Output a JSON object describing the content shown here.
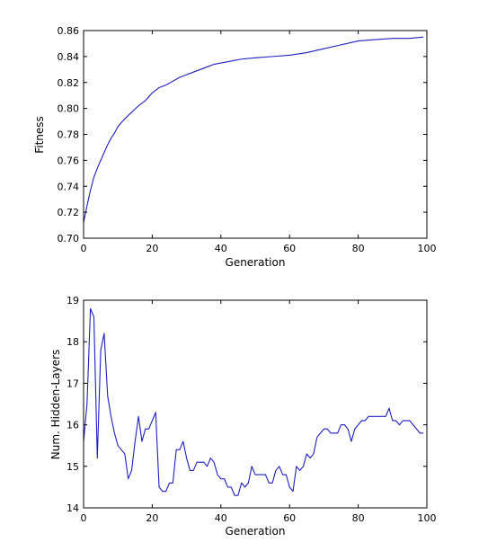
{
  "chart_data": [
    {
      "type": "line",
      "xlabel": "Generation",
      "ylabel": "Fitness",
      "xlim": [
        0,
        100
      ],
      "ylim": [
        0.7,
        0.86
      ],
      "xticks": [
        0,
        20,
        40,
        60,
        80,
        100
      ],
      "xtick_labels": [
        "0",
        "20",
        "40",
        "60",
        "80",
        "100"
      ],
      "yticks": [
        0.7,
        0.72,
        0.74,
        0.76,
        0.78,
        0.8,
        0.82,
        0.84,
        0.86
      ],
      "ytick_labels": [
        "0.70",
        "0.72",
        "0.74",
        "0.76",
        "0.78",
        "0.80",
        "0.82",
        "0.84",
        "0.86"
      ],
      "grid": false,
      "color": "#1f1fbf",
      "series": [
        {
          "x": [
            0,
            1,
            2,
            3,
            4,
            5,
            6,
            7,
            8,
            9,
            10,
            12,
            14,
            16,
            18,
            20,
            22,
            24,
            26,
            28,
            30,
            32,
            34,
            36,
            38,
            40,
            42,
            44,
            46,
            50,
            55,
            60,
            65,
            70,
            75,
            80,
            85,
            90,
            95,
            99
          ],
          "y": [
            0.712,
            0.725,
            0.737,
            0.747,
            0.754,
            0.76,
            0.766,
            0.772,
            0.777,
            0.781,
            0.786,
            0.792,
            0.797,
            0.802,
            0.806,
            0.812,
            0.816,
            0.818,
            0.821,
            0.824,
            0.826,
            0.828,
            0.83,
            0.832,
            0.834,
            0.835,
            0.836,
            0.837,
            0.838,
            0.839,
            0.84,
            0.841,
            0.843,
            0.846,
            0.849,
            0.852,
            0.853,
            0.854,
            0.854,
            0.855
          ]
        }
      ]
    },
    {
      "type": "line",
      "xlabel": "Generation",
      "ylabel": "Num. Hidden-Layers",
      "xlim": [
        0,
        100
      ],
      "ylim": [
        14,
        19
      ],
      "xticks": [
        0,
        20,
        40,
        60,
        80,
        100
      ],
      "xtick_labels": [
        "0",
        "20",
        "40",
        "60",
        "80",
        "100"
      ],
      "yticks": [
        14,
        15,
        16,
        17,
        18,
        19
      ],
      "ytick_labels": [
        "14",
        "15",
        "16",
        "17",
        "18",
        "19"
      ],
      "grid": false,
      "color": "#1f1fbf",
      "series": [
        {
          "x": [
            0,
            1,
            2,
            3,
            4,
            5,
            6,
            7,
            8,
            9,
            10,
            11,
            12,
            13,
            14,
            15,
            16,
            17,
            18,
            19,
            20,
            21,
            22,
            23,
            24,
            25,
            26,
            27,
            28,
            29,
            30,
            31,
            32,
            33,
            34,
            35,
            36,
            37,
            38,
            39,
            40,
            41,
            42,
            43,
            44,
            45,
            46,
            47,
            48,
            49,
            50,
            51,
            52,
            53,
            54,
            55,
            56,
            57,
            58,
            59,
            60,
            61,
            62,
            63,
            64,
            65,
            66,
            67,
            68,
            69,
            70,
            71,
            72,
            73,
            74,
            75,
            76,
            77,
            78,
            79,
            80,
            81,
            82,
            83,
            84,
            85,
            86,
            87,
            88,
            89,
            90,
            91,
            92,
            93,
            94,
            95,
            96,
            97,
            98,
            99
          ],
          "y": [
            15.6,
            16.5,
            18.8,
            18.6,
            15.2,
            17.8,
            18.2,
            16.7,
            16.2,
            15.8,
            15.5,
            15.4,
            15.3,
            14.7,
            14.9,
            15.6,
            16.2,
            15.6,
            15.9,
            15.9,
            16.1,
            16.3,
            14.5,
            14.4,
            14.4,
            14.6,
            14.6,
            15.4,
            15.4,
            15.6,
            15.2,
            14.9,
            14.9,
            15.1,
            15.1,
            15.1,
            15.0,
            15.2,
            15.1,
            14.8,
            14.7,
            14.7,
            14.5,
            14.5,
            14.3,
            14.3,
            14.6,
            14.5,
            14.6,
            15.0,
            14.8,
            14.8,
            14.8,
            14.8,
            14.6,
            14.6,
            14.9,
            15.0,
            14.8,
            14.8,
            14.5,
            14.4,
            15.0,
            14.9,
            15.0,
            15.3,
            15.2,
            15.3,
            15.7,
            15.8,
            15.9,
            15.9,
            15.8,
            15.8,
            15.8,
            16.0,
            16.0,
            15.9,
            15.6,
            15.9,
            16.0,
            16.1,
            16.1,
            16.2,
            16.2,
            16.2,
            16.2,
            16.2,
            16.2,
            16.4,
            16.1,
            16.1,
            16.0,
            16.1,
            16.1,
            16.1,
            16.0,
            15.9,
            15.8,
            15.8
          ]
        }
      ]
    }
  ]
}
